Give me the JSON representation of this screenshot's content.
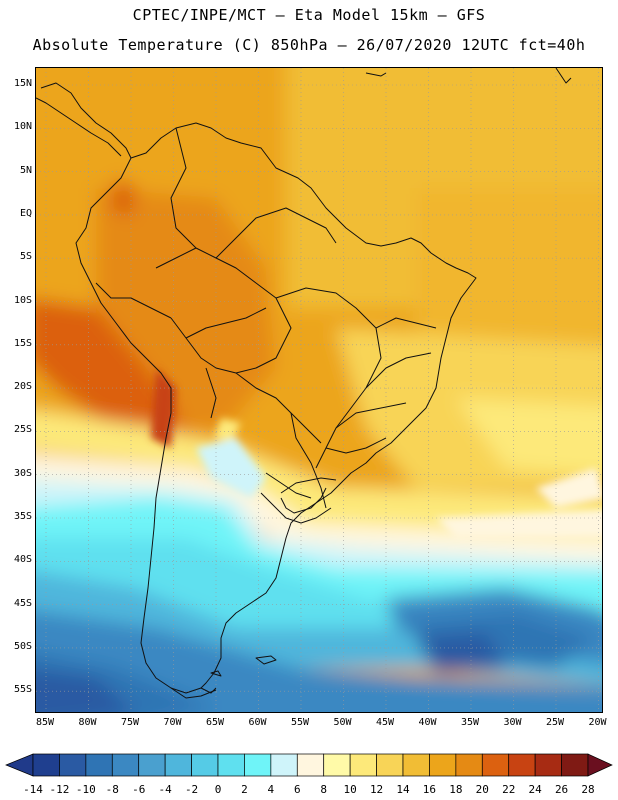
{
  "header": {
    "line1": "CPTEC/INPE/MCT  —   Eta Model 15km  —  GFS",
    "line2": "Absolute Temperature (C) 850hPa — 26/07/2020 12UTC fct=40h"
  },
  "map": {
    "lat_labels": [
      "15N",
      "10N",
      "5N",
      "EQ",
      "5S",
      "10S",
      "15S",
      "20S",
      "25S",
      "30S",
      "35S",
      "40S",
      "45S",
      "50S",
      "55S"
    ],
    "lon_labels": [
      "85W",
      "80W",
      "75W",
      "70W",
      "65W",
      "60W",
      "55W",
      "50W",
      "45W",
      "40W",
      "35W",
      "30W",
      "25W",
      "20W"
    ]
  },
  "colorbar": {
    "labels": [
      "-14",
      "-12",
      "-10",
      "-8",
      "-6",
      "-4",
      "-2",
      "0",
      "2",
      "4",
      "6",
      "8",
      "10",
      "12",
      "14",
      "16",
      "18",
      "20",
      "22",
      "24",
      "26",
      "28"
    ],
    "colors": [
      "#1f3f8f",
      "#2a5aa3",
      "#2f74b4",
      "#3b88c2",
      "#4aa0cf",
      "#4fb6dc",
      "#55cbe6",
      "#5fe0ef",
      "#6ff4f8",
      "#cff4fa",
      "#fff6df",
      "#fffaa8",
      "#fde97a",
      "#f8d457",
      "#f1bd35",
      "#eca51b",
      "#e58a14",
      "#dc6110",
      "#c84312",
      "#a72b13",
      "#7f1a14"
    ],
    "under_color": "#203a8a",
    "over_color": "#6a0f1f"
  },
  "palette": {
    "land_border": "#111111",
    "grid": "#9a9a9a"
  }
}
